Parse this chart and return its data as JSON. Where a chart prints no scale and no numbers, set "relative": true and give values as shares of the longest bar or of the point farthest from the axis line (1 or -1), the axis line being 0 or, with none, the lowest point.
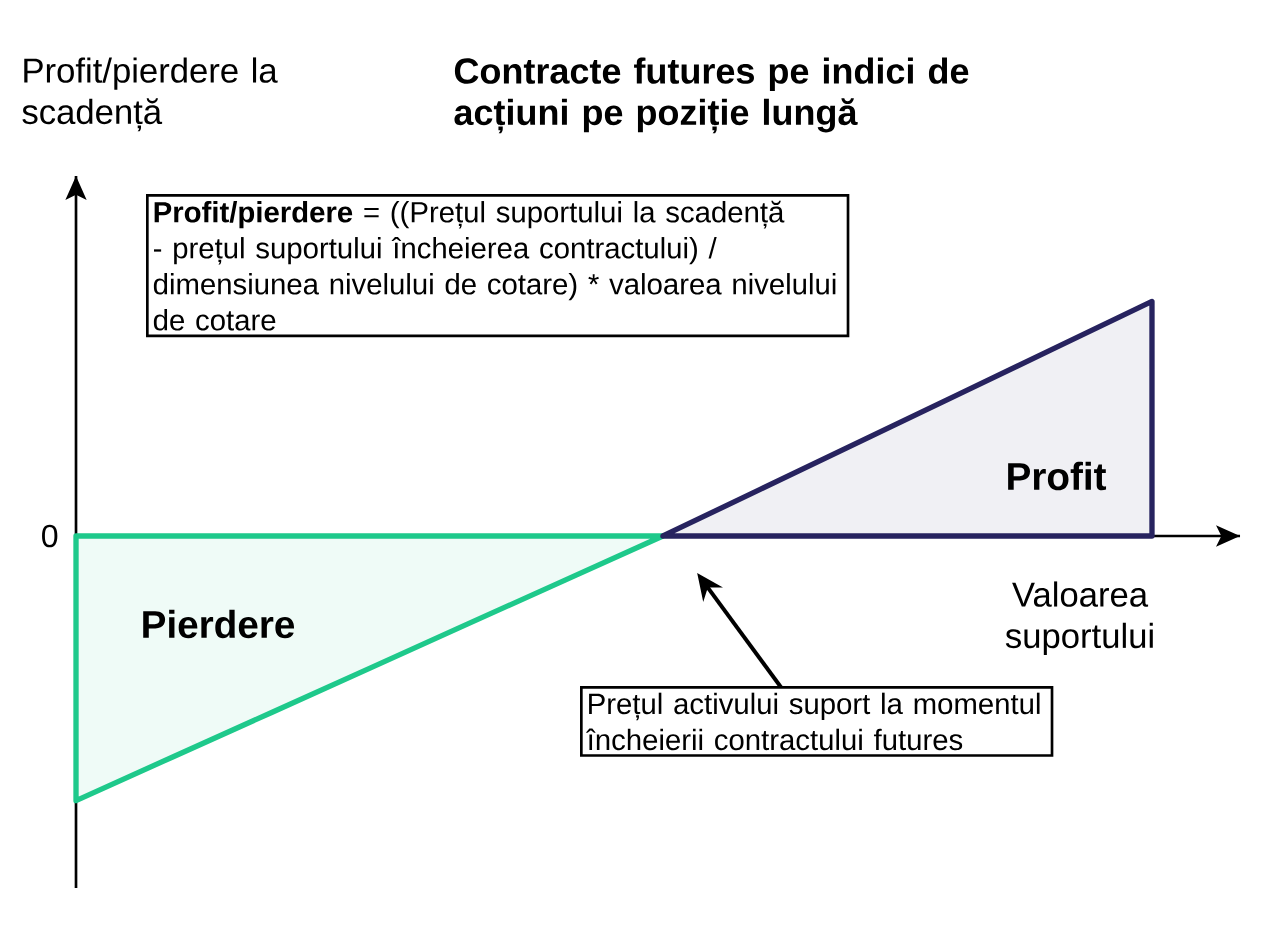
{
  "chart_data": {
    "type": "area",
    "relative": true,
    "title": "Contracte futures pe indici de acțiuni pe poziție lungă",
    "ylabel": "Profit/pierdere la scadență",
    "xlabel": "Valoarea suportului",
    "categories": [
      null,
      null,
      null,
      null,
      null,
      null,
      null,
      null,
      null,
      null,
      null,
      null
    ],
    "series": [
      {
        "color": "#1ec98b",
        "values": [
          -1,
          -0.833,
          -0.667,
          -0.5,
          -0.333,
          -0.167,
          0,
          null,
          null,
          null,
          null,
          null
        ]
      },
      {
        "color": "#27235f",
        "values": [
          null,
          null,
          null,
          null,
          null,
          null,
          0,
          0.177,
          0.354,
          0.531,
          0.709,
          0.886
        ]
      }
    ],
    "annotations": [
      "0",
      "**Profit/pierdere** = ((Prețul suportului la scadență - prețul suportului încheierea contractului) / dimensiunea nivelului de cotare) * valoarea nivelului de cotare",
      "Profit",
      "Pierdere",
      "Prețul activului suport la momentul încheierii contractului futures"
    ]
  }
}
